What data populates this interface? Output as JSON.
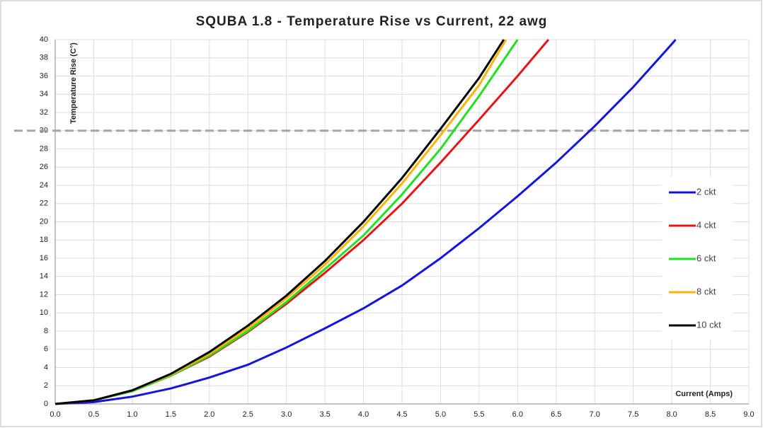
{
  "chart_data": {
    "type": "line",
    "title": "SQUBA 1.8 - Temperature Rise vs Current, 22 awg",
    "y_label": "Temperature Rise (C°)",
    "x_label": "Current (Amps)",
    "xlim": [
      0,
      9
    ],
    "ylim": [
      0,
      40
    ],
    "xticks": [
      {
        "value": 0,
        "label": "0.0"
      },
      0.5,
      {
        "value": 1,
        "label": "1.0"
      },
      1.5,
      {
        "value": 2,
        "label": "2.0"
      },
      2.5,
      {
        "value": 3,
        "label": "3.0"
      },
      3.5,
      {
        "value": 4,
        "label": "4.0"
      },
      4.5,
      {
        "value": 5,
        "label": "5.0"
      },
      5.5,
      {
        "value": 6,
        "label": "6.0"
      },
      6.5,
      {
        "value": 7,
        "label": "7.0"
      },
      7.5,
      {
        "value": 8,
        "label": "8.0"
      },
      8.5,
      {
        "value": 9,
        "label": "9.0"
      }
    ],
    "yticks": [
      0,
      2,
      4,
      6,
      8,
      10,
      12,
      14,
      16,
      18,
      20,
      22,
      24,
      26,
      28,
      30,
      32,
      34,
      36,
      38,
      40
    ],
    "grid": true,
    "reference_line": {
      "y": 30,
      "color": "#a6a6a6"
    },
    "legend": "right",
    "series": [
      {
        "name": "2 ckt",
        "color": "#1414e0",
        "x": [
          0,
          0.5,
          1,
          1.5,
          2,
          2.5,
          3,
          3.5,
          4,
          4.5,
          5,
          5.5,
          6,
          6.5,
          7,
          7.5,
          8,
          8.05
        ],
        "values": [
          0,
          0.2,
          0.8,
          1.7,
          2.9,
          4.3,
          6.2,
          8.3,
          10.5,
          13,
          16,
          19.3,
          22.8,
          26.5,
          30.5,
          34.8,
          39.5,
          40
        ]
      },
      {
        "name": "4 ckt",
        "color": "#e81414",
        "x": [
          0,
          0.5,
          1,
          1.5,
          2,
          2.5,
          3,
          3.5,
          4,
          4.5,
          5,
          5.5,
          6,
          6.4
        ],
        "values": [
          0,
          0.4,
          1.4,
          3.1,
          5.2,
          7.9,
          11,
          14.4,
          18,
          22,
          26.5,
          31.2,
          36,
          40
        ]
      },
      {
        "name": "6 ckt",
        "color": "#22e022",
        "x": [
          0,
          0.5,
          1,
          1.5,
          2,
          2.5,
          3,
          3.5,
          4,
          4.5,
          5,
          5.5,
          6
        ],
        "values": [
          0,
          0.4,
          1.4,
          3.1,
          5.3,
          8,
          11.2,
          14.8,
          18.5,
          23,
          28,
          33.8,
          40
        ]
      },
      {
        "name": "8 ckt",
        "color": "#ffb400",
        "x": [
          0,
          0.5,
          1,
          1.5,
          2,
          2.5,
          3,
          3.5,
          4,
          4.5,
          5,
          5.5,
          5.85
        ],
        "values": [
          0,
          0.4,
          1.5,
          3.2,
          5.5,
          8.3,
          11.6,
          15.3,
          19.5,
          24.2,
          29.5,
          35,
          40
        ]
      },
      {
        "name": "10 ckt",
        "color": "#000000",
        "x": [
          0,
          0.5,
          1,
          1.5,
          2,
          2.5,
          3,
          3.5,
          4,
          4.5,
          5,
          5.5,
          5.82
        ],
        "values": [
          0,
          0.4,
          1.5,
          3.3,
          5.7,
          8.6,
          11.9,
          15.7,
          20,
          24.8,
          30.2,
          35.8,
          40
        ]
      }
    ]
  }
}
